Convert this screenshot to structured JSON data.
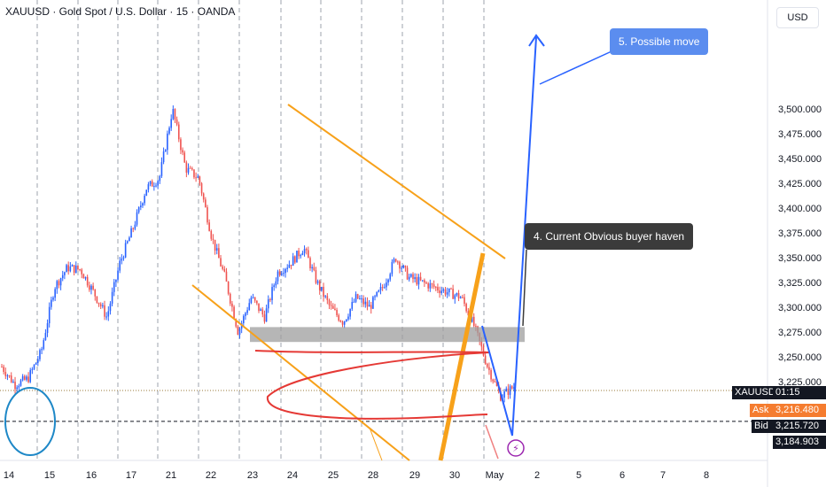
{
  "header": {
    "symbol_title": "XAUUSD · Gold Spot / U.S. Dollar · 15 · OANDA",
    "currency_button": "USD"
  },
  "annotations": {
    "possible_move": "5. Possible move",
    "buyer_haven": "4. Current Obvious buyer haven"
  },
  "price_tags": {
    "ticker": "XAUUSD",
    "countdown": "01:15",
    "ask_label": "Ask",
    "ask_value": "3,216.480",
    "bid_label": "Bid",
    "bid_value": "3,215.720",
    "low_value": "3,184.903"
  },
  "colors": {
    "up": "#26a69a",
    "candle_up": "#2962ff",
    "candle_down": "#ef5350",
    "orange": "#f7a11a",
    "red": "#e53935",
    "blue_arrow": "#2962ff",
    "zone": "#9e9e9e"
  },
  "chart_data": {
    "type": "candlestick",
    "title": "XAUUSD · Gold Spot / U.S. Dollar · 15 · OANDA",
    "y_axis": {
      "ticks": [
        "3,225.000",
        "3,250.000",
        "3,275.000",
        "3,300.000",
        "3,325.000",
        "3,350.000",
        "3,375.000",
        "3,400.000",
        "3,425.000",
        "3,450.000",
        "3,475.000",
        "3,500.000"
      ],
      "tick_values": [
        3225,
        3250,
        3275,
        3300,
        3325,
        3350,
        3375,
        3400,
        3425,
        3450,
        3475,
        3500
      ],
      "range": [
        3170,
        3515
      ]
    },
    "x_axis": {
      "ticks": [
        "14",
        "15",
        "16",
        "17",
        "21",
        "22",
        "23",
        "24",
        "25",
        "28",
        "29",
        "30",
        "May",
        "2",
        "5",
        "6",
        "7",
        "8"
      ]
    },
    "price_path": [
      [
        0,
        3240
      ],
      [
        1,
        3222
      ],
      [
        2,
        3228
      ],
      [
        3,
        3255
      ],
      [
        4,
        3320
      ],
      [
        5,
        3340
      ],
      [
        6,
        3338
      ],
      [
        7,
        3315
      ],
      [
        8,
        3290
      ],
      [
        9,
        3345
      ],
      [
        10,
        3380
      ],
      [
        11,
        3420
      ],
      [
        12,
        3430
      ],
      [
        13,
        3500
      ],
      [
        14,
        3440
      ],
      [
        15,
        3430
      ],
      [
        16,
        3370
      ],
      [
        17,
        3330
      ],
      [
        18,
        3275
      ],
      [
        19,
        3310
      ],
      [
        20,
        3290
      ],
      [
        21,
        3335
      ],
      [
        22,
        3345
      ],
      [
        23,
        3360
      ],
      [
        24,
        3325
      ],
      [
        25,
        3300
      ],
      [
        26,
        3285
      ],
      [
        27,
        3310
      ],
      [
        28,
        3300
      ],
      [
        29,
        3320
      ],
      [
        30,
        3350
      ],
      [
        31,
        3330
      ],
      [
        32,
        3325
      ],
      [
        33,
        3320
      ],
      [
        34,
        3315
      ],
      [
        35,
        3310
      ],
      [
        36,
        3280
      ],
      [
        37,
        3240
      ],
      [
        38,
        3210
      ],
      [
        39,
        3220
      ]
    ],
    "buyer_zone": [
      3265,
      3280
    ],
    "current_price": 3216.1,
    "low_line": 3184.903,
    "grid": true
  }
}
